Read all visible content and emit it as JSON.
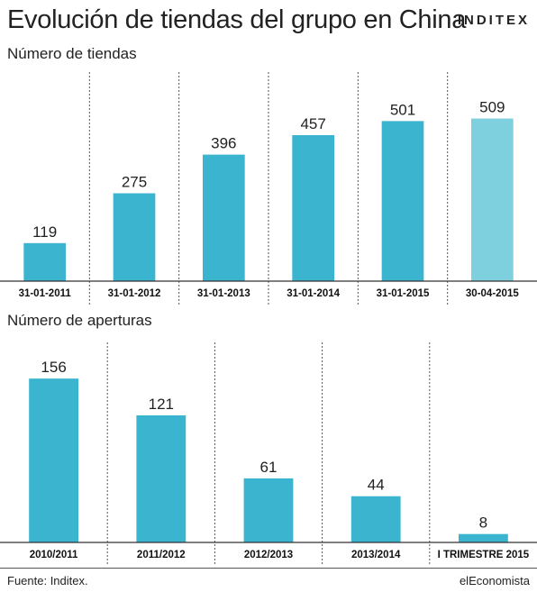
{
  "title": "Evolución de tiendas del grupo en China",
  "brand": "INDITEX",
  "source": "Fuente: Inditex.",
  "publisher": "elEconomista",
  "colors": {
    "bar": "#3bb5cf",
    "bar_highlight": "#7fd0de",
    "axis": "#333333",
    "divider": "#555555"
  },
  "chart_data": [
    {
      "type": "bar",
      "title": "Número de tiendas",
      "categories": [
        "31-01-2011",
        "31-01-2012",
        "31-01-2013",
        "31-01-2014",
        "31-01-2015",
        "30-04-2015"
      ],
      "values": [
        119,
        275,
        396,
        457,
        501,
        509
      ],
      "highlight_index": 5,
      "ylim": [
        0,
        550
      ],
      "grid": false
    },
    {
      "type": "bar",
      "title": "Número de aperturas",
      "categories": [
        "2010/2011",
        "2011/2012",
        "2012/2013",
        "2013/2014",
        "I TRIMESTRE 2015"
      ],
      "values": [
        156,
        121,
        61,
        44,
        8
      ],
      "ylim": [
        0,
        175
      ],
      "grid": false
    }
  ]
}
